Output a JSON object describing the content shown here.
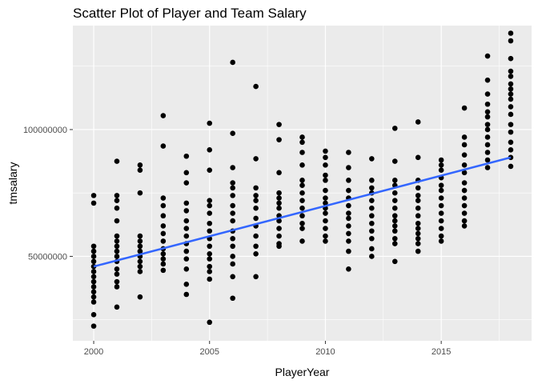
{
  "chart_data": {
    "type": "scatter",
    "title": "Scatter Plot of Player and Team Salary",
    "xlabel": "PlayerYear",
    "ylabel": "tmsalary",
    "xlim": [
      1999.1,
      2018.9
    ],
    "ylim": [
      16700000,
      141000000
    ],
    "x_ticks": [
      2000,
      2005,
      2010,
      2015
    ],
    "x_tick_labels": [
      "2000",
      "2005",
      "2010",
      "2015"
    ],
    "y_ticks": [
      50000000,
      100000000
    ],
    "y_tick_labels": [
      "50000000",
      "100000000"
    ],
    "grid": true,
    "legend": "none",
    "colors": {
      "panel": "#ebebeb",
      "grid": "#ffffff",
      "points": "#000000",
      "trend": "#3366ff"
    },
    "trend_line": {
      "x": [
        2000,
        2018
      ],
      "y": [
        46000000,
        89000000
      ]
    },
    "points": {
      "2000": [
        74,
        71,
        54,
        52,
        50,
        48,
        46,
        44,
        42,
        40,
        38,
        36,
        34,
        32,
        27,
        22.5
      ],
      "2001": [
        87.5,
        74,
        72,
        69,
        64,
        58,
        56,
        54,
        52,
        50,
        48,
        45,
        43,
        40,
        38,
        30
      ],
      "2002": [
        86,
        84,
        75,
        58,
        56,
        54,
        52,
        50,
        48,
        46,
        44,
        34
      ],
      "2003": [
        105.5,
        93.5,
        73,
        70,
        66,
        62,
        59,
        56,
        53,
        51,
        49,
        47,
        44.5
      ],
      "2004": [
        89.5,
        83,
        79,
        71,
        68,
        64,
        61,
        58,
        55,
        52,
        49,
        45,
        39,
        35
      ],
      "2005": [
        102.5,
        92,
        84,
        72,
        70,
        67,
        63,
        60,
        57,
        54,
        51,
        49,
        46,
        44,
        41,
        24
      ],
      "2006": [
        126.5,
        98.5,
        85,
        79,
        77,
        74,
        70,
        67,
        64,
        60,
        57,
        54,
        50,
        47,
        42,
        33.5
      ],
      "2007": [
        117,
        88.5,
        77,
        74,
        72,
        69,
        65,
        62,
        58,
        54,
        51,
        42
      ],
      "2008": [
        102,
        96,
        83,
        75,
        73,
        71,
        69,
        66,
        64,
        61,
        58,
        55,
        54
      ],
      "2009": [
        97,
        95,
        91,
        86,
        80,
        78,
        75,
        72,
        69,
        66,
        63,
        61,
        56
      ],
      "2010": [
        91.5,
        89,
        86,
        82,
        80,
        76,
        73,
        71,
        69,
        67,
        64,
        61,
        58,
        56
      ],
      "2011": [
        91,
        85,
        80,
        76,
        73,
        70,
        67,
        65,
        62,
        59,
        56,
        52,
        45
      ],
      "2012": [
        88.5,
        80,
        77,
        75,
        72,
        69,
        66,
        63,
        60,
        57,
        53,
        50
      ],
      "2013": [
        100.5,
        87.5,
        80,
        78,
        75,
        72,
        69,
        66,
        64,
        62,
        60,
        57,
        55,
        48
      ],
      "2014": [
        103,
        89,
        80,
        77,
        74,
        72,
        69,
        66,
        63,
        61,
        59,
        57,
        55,
        52
      ],
      "2015": [
        88,
        86,
        84,
        81,
        78,
        76,
        73,
        70,
        67,
        64,
        61,
        58,
        56
      ],
      "2016": [
        108.5,
        97,
        94,
        90,
        86,
        83,
        79,
        76,
        73,
        70,
        67,
        64,
        62
      ],
      "2017": [
        129,
        119.5,
        114,
        110,
        107,
        105,
        102,
        100,
        97,
        94,
        91,
        88,
        85
      ],
      "2018": [
        138,
        135,
        128,
        123,
        121,
        118,
        116,
        114,
        112,
        109,
        106,
        102,
        99,
        95,
        92,
        89,
        85.5
      ]
    },
    "points_unit": 1000000
  }
}
